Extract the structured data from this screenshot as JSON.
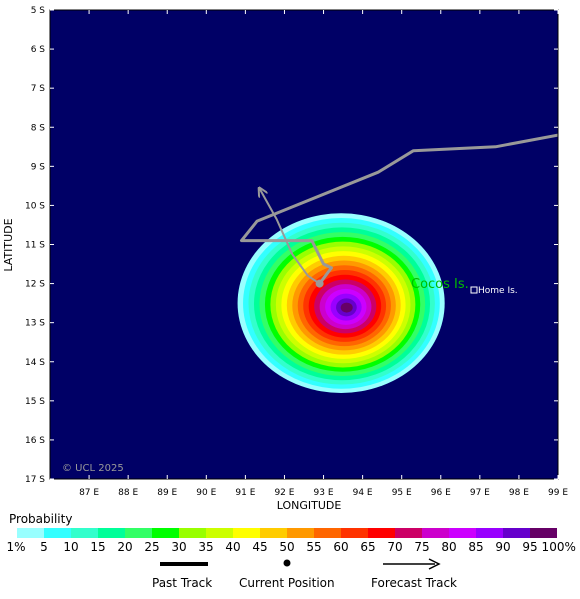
{
  "map": {
    "lat_labels": [
      "5 S",
      "6 S",
      "7 S",
      "8 S",
      "9 S",
      "10 S",
      "11 S",
      "12 S",
      "13 S",
      "14 S",
      "15 S",
      "16 S",
      "17 S"
    ],
    "lon_labels": [
      "87 E",
      "88 E",
      "89 E",
      "90 E",
      "91 E",
      "92 E",
      "93 E",
      "94 E",
      "95 E",
      "96 E",
      "97 E",
      "98 E",
      "99 E"
    ],
    "lon_range": [
      86,
      99
    ],
    "lat_range": [
      -17,
      -5
    ],
    "xlabel": "LONGITUDE",
    "ylabel": "LATITUDE",
    "copyright": "© UCL 2025",
    "place_large": "Cocos Is.",
    "place_small": "Home Is.",
    "background_color": "#000066",
    "track_color": "#999999",
    "past_track": [
      [
        99,
        -8.2
      ],
      [
        97.4,
        -8.5
      ],
      [
        95.3,
        -8.6
      ],
      [
        94.4,
        -9.15
      ],
      [
        91.3,
        -10.4
      ],
      [
        90.9,
        -10.9
      ],
      [
        92.7,
        -10.9
      ],
      [
        93.0,
        -11.5
      ],
      [
        93.2,
        -11.6
      ],
      [
        92.9,
        -12.0
      ]
    ],
    "forecast_track": [
      [
        92.9,
        -12.0
      ],
      [
        92.6,
        -11.8
      ],
      [
        92.2,
        -11.25
      ],
      [
        91.8,
        -10.35
      ],
      [
        91.35,
        -9.55
      ]
    ],
    "current_position": [
      92.9,
      -12.0
    ]
  },
  "legend": {
    "title": "Probability",
    "labels": [
      "1%",
      "5",
      "10",
      "15",
      "20",
      "25",
      "30",
      "35",
      "40",
      "45",
      "50",
      "55",
      "60",
      "65",
      "70",
      "75",
      "80",
      "85",
      "90",
      "95",
      "100%"
    ],
    "colors": [
      "#99ffff",
      "#33ffff",
      "#33ffcc",
      "#00ff99",
      "#33ff66",
      "#00ff00",
      "#99ff00",
      "#ccff00",
      "#ffff00",
      "#ffcc00",
      "#ff9900",
      "#ff6600",
      "#ff3300",
      "#ff0000",
      "#cc0066",
      "#cc00cc",
      "#cc00ff",
      "#9900ff",
      "#6600cc",
      "#660066"
    ],
    "past_track_label": "Past Track",
    "current_position_label": "Current Position",
    "forecast_track_label": "Forecast Track"
  }
}
